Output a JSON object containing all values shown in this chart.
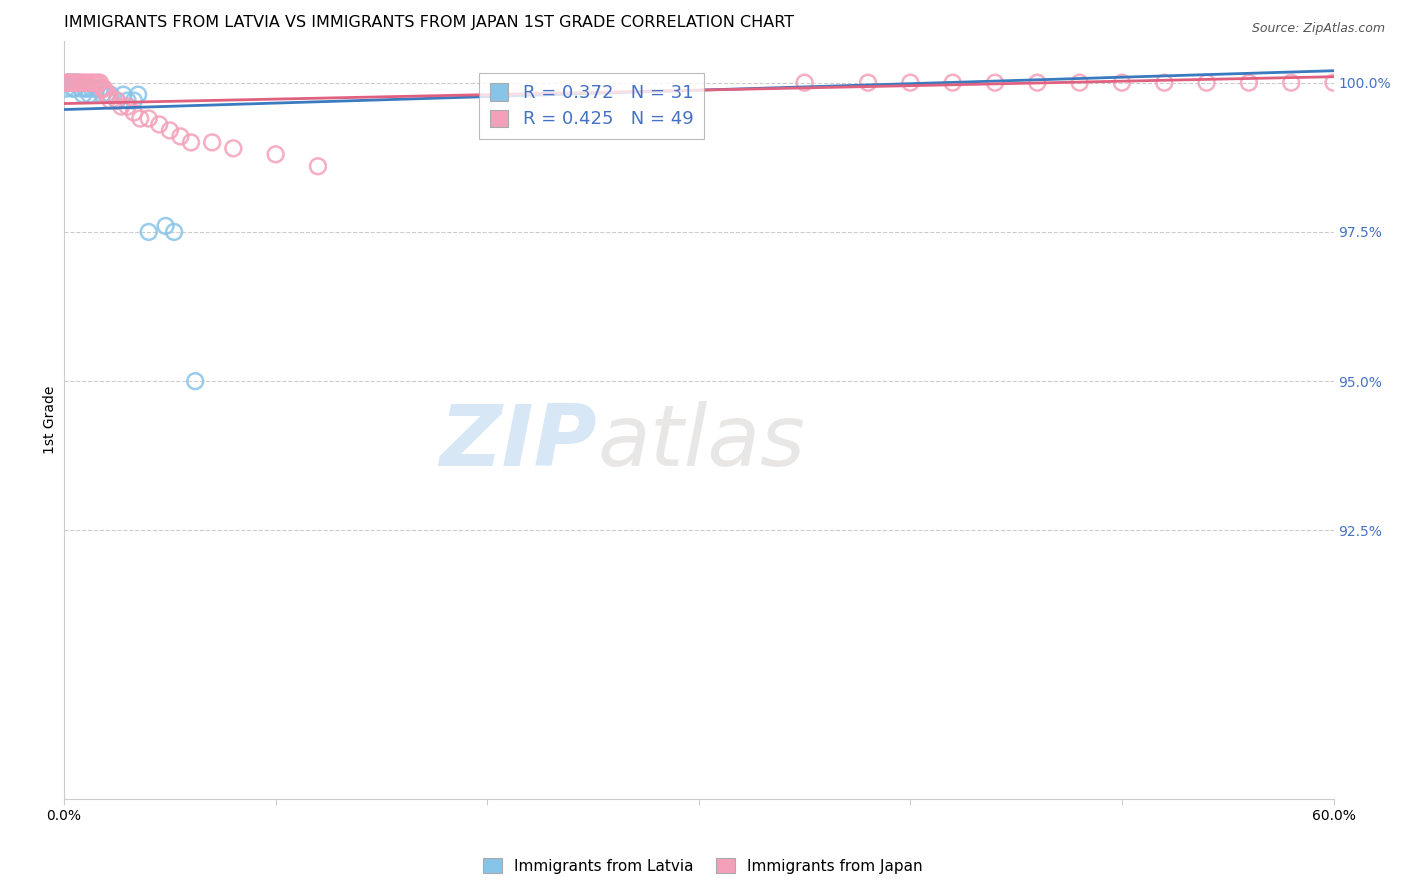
{
  "title": "IMMIGRANTS FROM LATVIA VS IMMIGRANTS FROM JAPAN 1ST GRADE CORRELATION CHART",
  "source": "Source: ZipAtlas.com",
  "ylabel": "1st Grade",
  "ylabel_right_labels": [
    "100.0%",
    "97.5%",
    "95.0%",
    "92.5%"
  ],
  "ylabel_right_values": [
    1.0,
    0.975,
    0.95,
    0.925
  ],
  "xlim": [
    0.0,
    0.6
  ],
  "ylim": [
    0.88,
    1.007
  ],
  "legend_latvia_R": "0.372",
  "legend_latvia_N": "31",
  "legend_japan_R": "0.425",
  "legend_japan_N": "49",
  "latvia_color": "#88c4e8",
  "japan_color": "#f4a0b8",
  "latvia_line_color": "#3a7abf",
  "japan_line_color": "#e06080",
  "watermark_zip": "ZIP",
  "watermark_atlas": "atlas",
  "grid_color": "#cccccc",
  "background_color": "#ffffff",
  "title_fontsize": 11.5,
  "axis_label_fontsize": 10,
  "tick_fontsize": 10,
  "latvia_x": [
    0.001,
    0.002,
    0.002,
    0.003,
    0.003,
    0.004,
    0.004,
    0.005,
    0.005,
    0.006,
    0.007,
    0.008,
    0.009,
    0.01,
    0.011,
    0.012,
    0.013,
    0.015,
    0.017,
    0.018,
    0.02,
    0.022,
    0.025,
    0.028,
    0.03,
    0.033,
    0.035,
    0.04,
    0.048,
    0.052,
    0.062
  ],
  "latvia_y": [
    0.999,
    1.0,
    1.0,
    1.0,
    1.0,
    1.0,
    0.999,
    1.0,
    0.999,
    1.0,
    1.0,
    0.999,
    0.998,
    0.999,
    0.999,
    0.998,
    0.999,
    0.999,
    0.999,
    0.998,
    0.998,
    0.998,
    0.997,
    0.998,
    0.997,
    0.997,
    0.998,
    0.975,
    0.976,
    0.975,
    0.95
  ],
  "japan_x": [
    0.001,
    0.002,
    0.003,
    0.004,
    0.005,
    0.006,
    0.007,
    0.008,
    0.009,
    0.01,
    0.011,
    0.012,
    0.013,
    0.014,
    0.015,
    0.016,
    0.017,
    0.018,
    0.019,
    0.02,
    0.021,
    0.022,
    0.025,
    0.027,
    0.03,
    0.033,
    0.036,
    0.04,
    0.045,
    0.05,
    0.055,
    0.06,
    0.07,
    0.08,
    0.1,
    0.12,
    0.35,
    0.38,
    0.4,
    0.42,
    0.44,
    0.46,
    0.48,
    0.5,
    0.52,
    0.54,
    0.56,
    0.58,
    0.6
  ],
  "japan_y": [
    1.0,
    1.0,
    1.0,
    1.0,
    1.0,
    1.0,
    1.0,
    1.0,
    1.0,
    1.0,
    1.0,
    1.0,
    1.0,
    1.0,
    1.0,
    1.0,
    1.0,
    0.999,
    0.999,
    0.998,
    0.998,
    0.997,
    0.997,
    0.996,
    0.996,
    0.995,
    0.994,
    0.994,
    0.993,
    0.992,
    0.991,
    0.99,
    0.99,
    0.989,
    0.988,
    0.986,
    1.0,
    1.0,
    1.0,
    1.0,
    1.0,
    1.0,
    1.0,
    1.0,
    1.0,
    1.0,
    1.0,
    1.0,
    1.0
  ],
  "latvia_trend_x": [
    0.0,
    0.6
  ],
  "latvia_trend_y": [
    0.9955,
    1.002
  ],
  "japan_trend_x": [
    0.0,
    0.6
  ],
  "japan_trend_y": [
    0.9965,
    1.001
  ]
}
